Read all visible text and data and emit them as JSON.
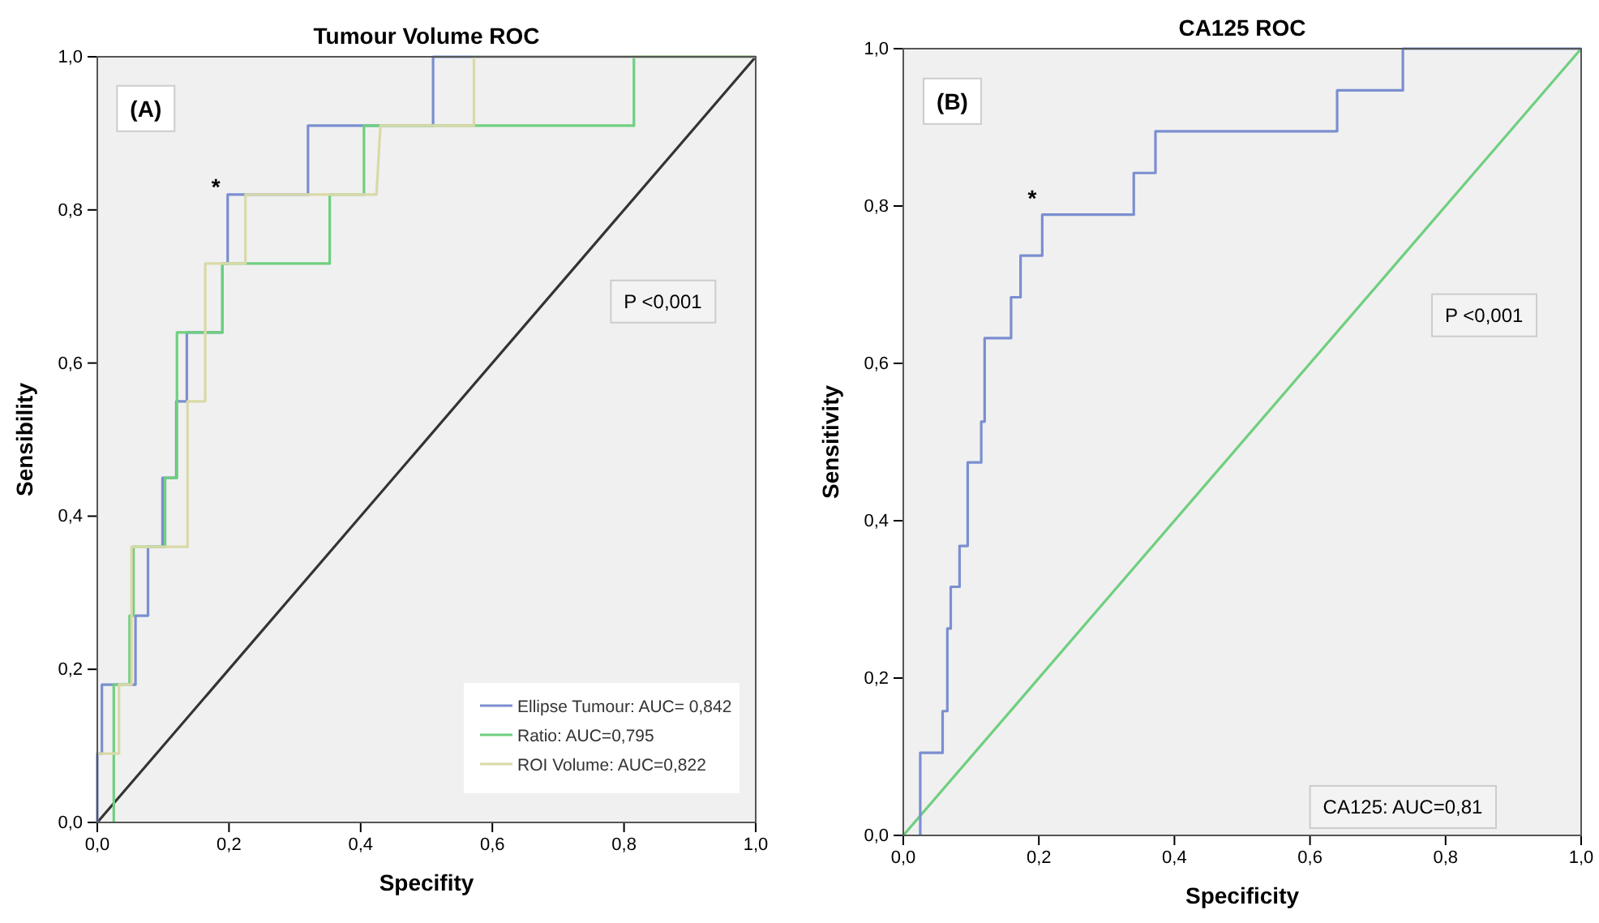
{
  "chart_data": [
    {
      "type": "line",
      "title": "Tumour Volume ROC",
      "xlabel": "Specifity",
      "ylabel": "Sensibility",
      "xlim": [
        0,
        1
      ],
      "ylim": [
        0,
        1
      ],
      "xticks": [
        {
          "value": 0,
          "label": "0,0"
        },
        {
          "value": 0.2,
          "label": "0,2"
        },
        {
          "value": 0.4,
          "label": "0,4"
        },
        {
          "value": 0.6,
          "label": "0,6"
        },
        {
          "value": 0.8,
          "label": "0,8"
        },
        {
          "value": 1,
          "label": "1,0"
        }
      ],
      "yticks": [
        {
          "value": 0,
          "label": "0,0"
        },
        {
          "value": 0.2,
          "label": "0,2"
        },
        {
          "value": 0.4,
          "label": "0,4"
        },
        {
          "value": 0.6,
          "label": "0,6"
        },
        {
          "value": 0.8,
          "label": "0,8"
        },
        {
          "value": 1,
          "label": "1,0"
        }
      ],
      "legend": "bottom right",
      "series": [
        {
          "color": "#333333",
          "x": [
            0,
            1
          ],
          "values": [
            0,
            1
          ]
        },
        {
          "name": "Ellipse Tumour: AUC= 0,842",
          "color": "#7b8fd0",
          "x": [
            0,
            0,
            0.007,
            0.007,
            0.058,
            0.058,
            0.077,
            0.077,
            0.099,
            0.099,
            0.12,
            0.12,
            0.136,
            0.136,
            0.19,
            0.19,
            0.198,
            0.198,
            0.32,
            0.32,
            0.51,
            0.51,
            1
          ],
          "values": [
            0,
            0.09,
            0.09,
            0.18,
            0.18,
            0.27,
            0.27,
            0.36,
            0.36,
            0.45,
            0.45,
            0.55,
            0.55,
            0.64,
            0.64,
            0.73,
            0.73,
            0.82,
            0.82,
            0.91,
            0.91,
            1,
            1
          ]
        },
        {
          "name": "Ratio: AUC=0,795",
          "color": "#6fcf7f",
          "x": [
            0.025,
            0.025,
            0.049,
            0.049,
            0.055,
            0.055,
            0.103,
            0.103,
            0.121,
            0.121,
            0.19,
            0.19,
            0.353,
            0.353,
            0.405,
            0.405,
            0.815,
            0.815,
            1
          ],
          "values": [
            0,
            0.18,
            0.18,
            0.27,
            0.27,
            0.36,
            0.36,
            0.45,
            0.45,
            0.64,
            0.64,
            0.73,
            0.73,
            0.82,
            0.82,
            0.91,
            0.91,
            1,
            1
          ]
        },
        {
          "name": "ROI Volume: AUC=0,822",
          "color": "#d9d9a8",
          "x": [
            0,
            0.033,
            0.033,
            0.052,
            0.052,
            0.137,
            0.137,
            0.164,
            0.164,
            0.225,
            0.225,
            0.424,
            0.43,
            0.572,
            0.572,
            1
          ],
          "values": [
            0.09,
            0.09,
            0.18,
            0.18,
            0.36,
            0.36,
            0.55,
            0.55,
            0.73,
            0.73,
            0.82,
            0.82,
            0.91,
            0.91,
            1,
            1
          ]
        }
      ],
      "annotations": [
        "(A)",
        "P <0,001",
        "*"
      ]
    },
    {
      "type": "line",
      "title": "CA125 ROC",
      "xlabel": "Specificity",
      "ylabel": "Sensitivity",
      "xlim": [
        0,
        1
      ],
      "ylim": [
        0,
        1
      ],
      "xticks": [
        {
          "value": 0,
          "label": "0,0"
        },
        {
          "value": 0.2,
          "label": "0,2"
        },
        {
          "value": 0.4,
          "label": "0,4"
        },
        {
          "value": 0.6,
          "label": "0,6"
        },
        {
          "value": 0.8,
          "label": "0,8"
        },
        {
          "value": 1,
          "label": "1,0"
        }
      ],
      "yticks": [
        {
          "value": 0,
          "label": "0,0"
        },
        {
          "value": 0.2,
          "label": "0,2"
        },
        {
          "value": 0.4,
          "label": "0,4"
        },
        {
          "value": 0.6,
          "label": "0,6"
        },
        {
          "value": 0.8,
          "label": "0,8"
        },
        {
          "value": 1,
          "label": "1,0"
        }
      ],
      "series": [
        {
          "color": "#6fcf7f",
          "x": [
            0,
            1
          ],
          "values": [
            0,
            1
          ]
        },
        {
          "color": "#7b8fd0",
          "x": [
            0.025,
            0.025,
            0.058,
            0.058,
            0.065,
            0.065,
            0.07,
            0.07,
            0.083,
            0.083,
            0.095,
            0.095,
            0.115,
            0.115,
            0.12,
            0.12,
            0.159,
            0.159,
            0.173,
            0.173,
            0.205,
            0.205,
            0.34,
            0.34,
            0.372,
            0.372,
            0.64,
            0.64,
            0.737,
            0.737,
            1
          ],
          "values": [
            0,
            0.105,
            0.105,
            0.158,
            0.158,
            0.263,
            0.263,
            0.316,
            0.316,
            0.368,
            0.368,
            0.474,
            0.474,
            0.526,
            0.526,
            0.632,
            0.632,
            0.684,
            0.684,
            0.737,
            0.737,
            0.789,
            0.789,
            0.842,
            0.842,
            0.895,
            0.895,
            0.947,
            0.947,
            1,
            1
          ]
        }
      ],
      "annotations": [
        "(B)",
        "P <0,001",
        "CA125: AUC=0,81",
        "*"
      ]
    }
  ]
}
